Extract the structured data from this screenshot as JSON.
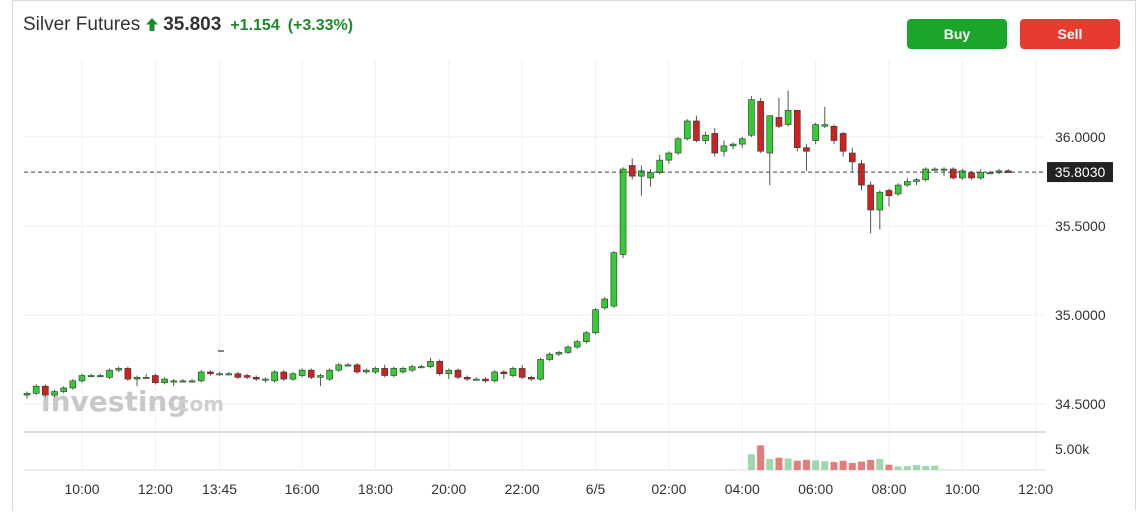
{
  "header": {
    "title": "Silver Futures",
    "price": "35.803",
    "change": "+1.154",
    "change_pct": "(+3.33%)",
    "trend_icon": "up-arrow-icon"
  },
  "actions": {
    "buy_label": "Buy",
    "sell_label": "Sell"
  },
  "watermark": {
    "brand": "investing",
    "suffix": ".com"
  },
  "colors": {
    "up": "#33cc33",
    "down": "#cc2222",
    "positive_text": "#1d8b2a",
    "buy": "#1aa629",
    "sell": "#e83a2e",
    "vol_up": "#9fd8ae",
    "vol_down": "#e57b7b"
  },
  "chart_data": {
    "type": "candlestick",
    "interval_hours": 0.5,
    "first_bar": "08:30",
    "x_ticks": [
      "10:00",
      "12:00",
      "13:45",
      "16:00",
      "18:00",
      "20:00",
      "22:00",
      "6/5",
      "02:00",
      "04:00",
      "06:00",
      "08:00",
      "10:00",
      "12:00"
    ],
    "y_ticks": [
      "36.0000",
      "35.5000",
      "35.0000",
      "34.5000"
    ],
    "ylim": [
      34.4,
      36.35
    ],
    "current_price_label": "35.8030",
    "current_price": 35.803,
    "volume_label": "5.00k",
    "volume_max": 5000,
    "series": [
      {
        "name": "price",
        "ohlc": [
          [
            34.55,
            34.57,
            34.53,
            34.56
          ],
          [
            34.56,
            34.61,
            34.55,
            34.6
          ],
          [
            34.6,
            34.61,
            34.54,
            34.55
          ],
          [
            34.55,
            34.58,
            34.54,
            34.57
          ],
          [
            34.57,
            34.6,
            34.56,
            34.59
          ],
          [
            34.59,
            34.64,
            34.58,
            34.63
          ],
          [
            34.63,
            34.67,
            34.62,
            34.66
          ],
          [
            34.66,
            34.67,
            34.65,
            34.66
          ],
          [
            34.66,
            34.67,
            34.65,
            34.66
          ],
          [
            34.65,
            34.7,
            34.64,
            34.69
          ],
          [
            34.69,
            34.71,
            34.68,
            34.7
          ],
          [
            34.7,
            34.71,
            34.63,
            34.64
          ],
          [
            34.64,
            34.66,
            34.6,
            34.65
          ],
          [
            34.65,
            34.67,
            34.64,
            34.65
          ],
          [
            34.66,
            34.67,
            34.61,
            34.62
          ],
          [
            34.62,
            34.65,
            34.61,
            34.64
          ],
          [
            34.63,
            34.64,
            34.6,
            34.63
          ],
          [
            34.63,
            34.64,
            34.62,
            34.63
          ],
          [
            34.63,
            34.64,
            34.62,
            34.63
          ],
          [
            34.63,
            34.69,
            34.62,
            34.68
          ],
          [
            34.68,
            34.69,
            34.66,
            34.67
          ],
          [
            34.67,
            34.68,
            34.66,
            34.67
          ],
          [
            34.67,
            34.68,
            34.66,
            34.67
          ],
          [
            34.67,
            34.68,
            34.64,
            34.65
          ],
          [
            34.66,
            34.67,
            34.64,
            34.65
          ],
          [
            34.65,
            34.66,
            34.63,
            34.64
          ],
          [
            34.64,
            34.65,
            34.62,
            34.64
          ],
          [
            34.63,
            34.69,
            34.62,
            34.68
          ],
          [
            34.68,
            34.69,
            34.63,
            34.64
          ],
          [
            34.64,
            34.68,
            34.63,
            34.67
          ],
          [
            34.66,
            34.7,
            34.65,
            34.69
          ],
          [
            34.69,
            34.7,
            34.64,
            34.65
          ],
          [
            34.65,
            34.67,
            34.6,
            34.66
          ],
          [
            34.64,
            34.7,
            34.63,
            34.69
          ],
          [
            34.69,
            34.73,
            34.68,
            34.72
          ],
          [
            34.72,
            34.73,
            34.71,
            34.72
          ],
          [
            34.72,
            34.73,
            34.67,
            34.68
          ],
          [
            34.68,
            34.7,
            34.67,
            34.69
          ],
          [
            34.68,
            34.71,
            34.67,
            34.7
          ],
          [
            34.7,
            34.72,
            34.65,
            34.66
          ],
          [
            34.66,
            34.71,
            34.65,
            34.7
          ],
          [
            34.68,
            34.71,
            34.67,
            34.7
          ],
          [
            34.69,
            34.72,
            34.68,
            34.71
          ],
          [
            34.71,
            34.72,
            34.7,
            34.71
          ],
          [
            34.71,
            34.76,
            34.7,
            34.74
          ],
          [
            34.74,
            34.75,
            34.66,
            34.67
          ],
          [
            34.67,
            34.7,
            34.64,
            34.69
          ],
          [
            34.69,
            34.7,
            34.64,
            34.65
          ],
          [
            34.65,
            34.66,
            34.63,
            34.64
          ],
          [
            34.64,
            34.65,
            34.63,
            34.64
          ],
          [
            34.64,
            34.65,
            34.62,
            34.63
          ],
          [
            34.63,
            34.69,
            34.62,
            34.68
          ],
          [
            34.68,
            34.69,
            34.64,
            34.67
          ],
          [
            34.66,
            34.71,
            34.65,
            34.7
          ],
          [
            34.7,
            34.72,
            34.64,
            34.65
          ],
          [
            34.65,
            34.66,
            34.63,
            34.64
          ],
          [
            34.64,
            34.76,
            34.63,
            34.75
          ],
          [
            34.75,
            34.79,
            34.74,
            34.78
          ],
          [
            34.78,
            34.8,
            34.77,
            34.79
          ],
          [
            34.79,
            34.83,
            34.78,
            34.82
          ],
          [
            34.82,
            34.86,
            34.81,
            34.85
          ],
          [
            34.85,
            34.91,
            34.84,
            34.9
          ],
          [
            34.9,
            35.04,
            34.89,
            35.03
          ],
          [
            35.04,
            35.1,
            35.03,
            35.09
          ],
          [
            35.05,
            35.36,
            35.04,
            35.35
          ],
          [
            35.34,
            35.83,
            35.32,
            35.82
          ],
          [
            35.84,
            35.88,
            35.76,
            35.78
          ],
          [
            35.78,
            35.84,
            35.67,
            35.81
          ],
          [
            35.77,
            35.82,
            35.72,
            35.8
          ],
          [
            35.8,
            35.9,
            35.79,
            35.87
          ],
          [
            35.87,
            35.92,
            35.85,
            35.91
          ],
          [
            35.91,
            36.0,
            35.9,
            35.99
          ],
          [
            35.99,
            36.1,
            35.98,
            36.09
          ],
          [
            36.09,
            36.12,
            35.97,
            35.98
          ],
          [
            35.98,
            36.03,
            35.96,
            36.01
          ],
          [
            36.02,
            36.05,
            35.89,
            35.91
          ],
          [
            35.92,
            35.98,
            35.89,
            35.95
          ],
          [
            35.95,
            35.97,
            35.93,
            35.96
          ],
          [
            35.96,
            36.0,
            35.94,
            35.99
          ],
          [
            36.01,
            36.23,
            36.0,
            36.21
          ],
          [
            36.2,
            36.22,
            35.91,
            35.92
          ],
          [
            35.91,
            36.12,
            35.73,
            36.12
          ],
          [
            36.11,
            36.22,
            36.05,
            36.06
          ],
          [
            36.07,
            36.26,
            36.06,
            36.15
          ],
          [
            36.15,
            36.15,
            35.92,
            35.94
          ],
          [
            35.94,
            35.96,
            35.81,
            35.92
          ],
          [
            35.98,
            36.08,
            35.96,
            36.07
          ],
          [
            36.06,
            36.17,
            36.05,
            36.07
          ],
          [
            36.06,
            36.07,
            35.96,
            35.98
          ],
          [
            36.02,
            36.03,
            35.89,
            35.92
          ],
          [
            35.91,
            35.94,
            35.8,
            35.86
          ],
          [
            35.85,
            35.87,
            35.7,
            35.73
          ],
          [
            35.73,
            35.75,
            35.46,
            35.59
          ],
          [
            35.59,
            35.7,
            35.48,
            35.69
          ],
          [
            35.7,
            35.71,
            35.61,
            35.67
          ],
          [
            35.68,
            35.74,
            35.67,
            35.73
          ],
          [
            35.73,
            35.77,
            35.72,
            35.75
          ],
          [
            35.75,
            35.77,
            35.73,
            35.76
          ],
          [
            35.76,
            35.83,
            35.75,
            35.82
          ],
          [
            35.82,
            35.83,
            35.81,
            35.82
          ],
          [
            35.82,
            35.83,
            35.78,
            35.82
          ],
          [
            35.82,
            35.83,
            35.76,
            35.77
          ],
          [
            35.77,
            35.82,
            35.76,
            35.81
          ],
          [
            35.8,
            35.81,
            35.76,
            35.77
          ],
          [
            35.77,
            35.82,
            35.76,
            35.8
          ],
          [
            35.8,
            35.81,
            35.79,
            35.8
          ],
          [
            35.8,
            35.82,
            35.79,
            35.81
          ],
          [
            35.81,
            35.82,
            35.8,
            35.8
          ]
        ]
      },
      {
        "name": "volume",
        "values": [
          0,
          0,
          0,
          0,
          0,
          0,
          0,
          0,
          0,
          0,
          0,
          0,
          0,
          0,
          0,
          0,
          0,
          0,
          0,
          0,
          0,
          0,
          0,
          0,
          0,
          0,
          0,
          0,
          0,
          0,
          0,
          0,
          0,
          0,
          0,
          0,
          0,
          0,
          0,
          0,
          0,
          0,
          0,
          0,
          0,
          0,
          0,
          0,
          0,
          0,
          0,
          0,
          0,
          0,
          0,
          0,
          0,
          0,
          0,
          0,
          0,
          0,
          0,
          0,
          0,
          0,
          0,
          0,
          0,
          0,
          0,
          0,
          0,
          0,
          0,
          0,
          0,
          0,
          0,
          3600,
          5600,
          2500,
          2800,
          2600,
          2100,
          2300,
          2200,
          2000,
          1800,
          2100,
          1600,
          1900,
          2300,
          2500,
          1200,
          800,
          900,
          1100,
          900,
          1000,
          100,
          0,
          0,
          0,
          0,
          0,
          0,
          0,
          0,
          0
        ]
      }
    ]
  }
}
